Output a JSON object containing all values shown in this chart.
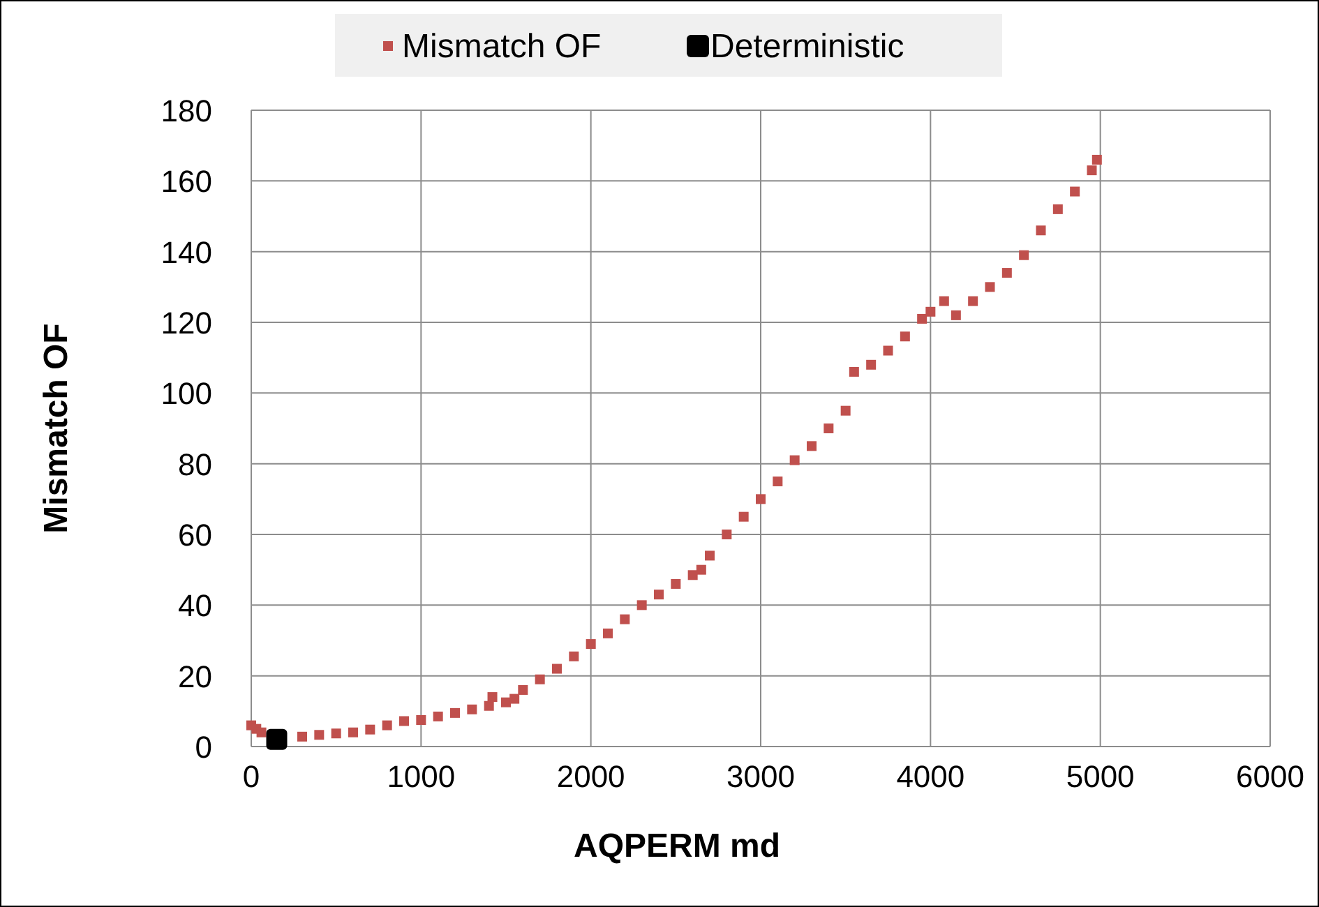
{
  "chart_data": {
    "type": "scatter",
    "xlabel": "AQPERM md",
    "ylabel": "Mismatch OF",
    "xlim": [
      0,
      6000
    ],
    "ylim": [
      0,
      180
    ],
    "xticks": [
      0,
      1000,
      2000,
      3000,
      4000,
      5000,
      6000
    ],
    "yticks": [
      0,
      20,
      40,
      60,
      80,
      100,
      120,
      140,
      160,
      180
    ],
    "grid": true,
    "legend": "top",
    "marker": "square",
    "series": [
      {
        "name": "Mismatch OF",
        "color": "#c0504d",
        "x": [
          0,
          30,
          60,
          300,
          400,
          500,
          600,
          700,
          800,
          900,
          1000,
          1100,
          1200,
          1300,
          1400,
          1420,
          1500,
          1550,
          1600,
          1700,
          1800,
          1900,
          2000,
          2100,
          2200,
          2300,
          2400,
          2500,
          2600,
          2650,
          2700,
          2800,
          2900,
          3000,
          3100,
          3200,
          3300,
          3400,
          3500,
          3550,
          3650,
          3750,
          3850,
          3950,
          4000,
          4080,
          4150,
          4250,
          4350,
          4450,
          4550,
          4650,
          4750,
          4850,
          4950,
          4980
        ],
        "values": [
          6,
          5,
          4,
          2.8,
          3.3,
          3.7,
          4,
          4.8,
          6,
          7.2,
          7.5,
          8.5,
          9.5,
          10.5,
          11.5,
          14,
          12.5,
          13.5,
          16,
          19,
          22,
          25.5,
          29,
          32,
          36,
          40,
          43,
          46,
          48.5,
          50,
          54,
          60,
          65,
          70,
          75,
          81,
          85,
          90,
          95,
          106,
          108,
          112,
          116,
          121,
          123,
          126,
          122,
          126,
          130,
          134,
          139,
          146,
          152,
          157,
          163,
          166
        ]
      },
      {
        "name": "Deterministic",
        "color": "#000000",
        "x": [
          150
        ],
        "values": [
          2
        ]
      }
    ]
  }
}
